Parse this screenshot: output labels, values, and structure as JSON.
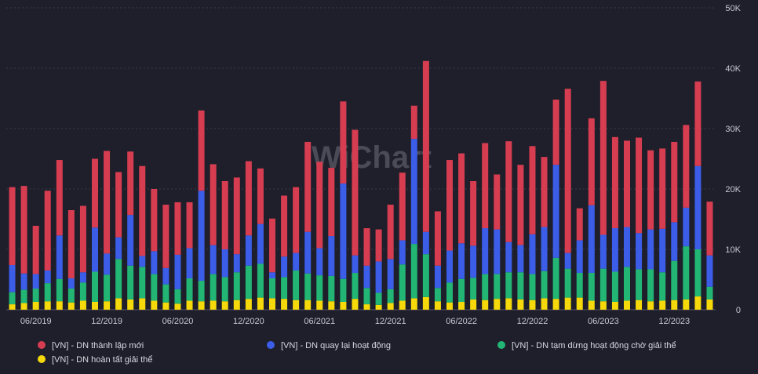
{
  "chart_data": {
    "type": "bar",
    "stacked": true,
    "watermark": "WiChart",
    "y_axis": {
      "position": "right",
      "min": 0,
      "max": 50000,
      "ticks": [
        0,
        10000,
        20000,
        30000,
        40000,
        50000
      ],
      "tick_labels": [
        "0",
        "10K",
        "20K",
        "30K",
        "40K",
        "50K"
      ]
    },
    "x_tick_labels": [
      {
        "label": "06/2019",
        "index": 2
      },
      {
        "label": "12/2019",
        "index": 8
      },
      {
        "label": "06/2020",
        "index": 14
      },
      {
        "label": "12/2020",
        "index": 20
      },
      {
        "label": "06/2021",
        "index": 26
      },
      {
        "label": "12/2021",
        "index": 32
      },
      {
        "label": "06/2022",
        "index": 38
      },
      {
        "label": "12/2022",
        "index": 44
      },
      {
        "label": "06/2023",
        "index": 50
      },
      {
        "label": "12/2023",
        "index": 56
      }
    ],
    "categories": [
      "04/2019",
      "05/2019",
      "06/2019",
      "07/2019",
      "08/2019",
      "09/2019",
      "10/2019",
      "11/2019",
      "12/2019",
      "01/2020",
      "02/2020",
      "03/2020",
      "04/2020",
      "05/2020",
      "06/2020",
      "07/2020",
      "08/2020",
      "09/2020",
      "10/2020",
      "11/2020",
      "12/2020",
      "01/2021",
      "02/2021",
      "03/2021",
      "04/2021",
      "05/2021",
      "06/2021",
      "07/2021",
      "08/2021",
      "09/2021",
      "10/2021",
      "11/2021",
      "12/2021",
      "01/2022",
      "02/2022",
      "03/2022",
      "04/2022",
      "05/2022",
      "06/2022",
      "07/2022",
      "08/2022",
      "09/2022",
      "10/2022",
      "11/2022",
      "12/2022",
      "01/2023",
      "02/2023",
      "03/2023",
      "04/2023",
      "05/2023",
      "06/2023",
      "07/2023",
      "08/2023",
      "09/2023",
      "10/2023",
      "11/2023",
      "12/2023",
      "01/2024",
      "02/2024",
      "03/2024"
    ],
    "series": [
      {
        "name": "[VN] - DN hoàn tất giải thể",
        "color": "#f5d90a",
        "values": [
          900,
          1100,
          1300,
          1400,
          1400,
          1200,
          1500,
          1300,
          1400,
          1900,
          1700,
          1900,
          1500,
          1200,
          1000,
          1500,
          1400,
          1500,
          1400,
          1600,
          1800,
          2000,
          1900,
          1800,
          1600,
          1600,
          1500,
          1400,
          1300,
          1800,
          900,
          800,
          1100,
          1500,
          1900,
          2100,
          1400,
          1200,
          1300,
          1700,
          1600,
          1800,
          1900,
          1700,
          1600,
          1900,
          1800,
          2000,
          2000,
          1500,
          1400,
          1300,
          1500,
          1600,
          1400,
          1500,
          1600,
          1700,
          2200,
          1700
        ]
      },
      {
        "name": "[VN] - DN tạm dừng hoạt động chờ giải thể",
        "color": "#22b573",
        "values": [
          2000,
          2200,
          2200,
          3000,
          3700,
          2300,
          3000,
          5000,
          4400,
          6500,
          5600,
          5200,
          4400,
          3000,
          2400,
          3700,
          3400,
          4400,
          4000,
          4600,
          5500,
          5600,
          3300,
          3600,
          4900,
          4400,
          4200,
          4200,
          3800,
          4300,
          2700,
          2000,
          2300,
          6000,
          9000,
          7100,
          2200,
          3300,
          3800,
          3600,
          4300,
          4100,
          4300,
          4500,
          4300,
          4500,
          6800,
          4800,
          4100,
          4600,
          5400,
          5000,
          5600,
          5100,
          5300,
          4700,
          6500,
          8800,
          7800,
          2100
        ]
      },
      {
        "name": "[VN] - DN quay lại hoạt động",
        "color": "#3b5de7",
        "values": [
          4500,
          2700,
          2400,
          2100,
          7200,
          1700,
          1700,
          7300,
          3500,
          3600,
          8400,
          1800,
          3800,
          2700,
          5700,
          5000,
          14900,
          4800,
          4600,
          3000,
          5000,
          6600,
          1000,
          3400,
          2900,
          6900,
          4500,
          6600,
          15800,
          2900,
          3700,
          5200,
          5000,
          4000,
          17400,
          3700,
          3700,
          5300,
          5900,
          5300,
          7600,
          7400,
          5000,
          4500,
          6600,
          7300,
          15400,
          2600,
          5400,
          11200,
          5600,
          7200,
          6600,
          6000,
          6600,
          7200,
          6400,
          6400,
          13800,
          5200
        ]
      },
      {
        "name": "[VN] - DN thành lập mới",
        "color": "#d63d50",
        "values": [
          12900,
          14500,
          8000,
          13200,
          12500,
          11300,
          11000,
          11400,
          17000,
          10800,
          10500,
          14900,
          10300,
          10500,
          8700,
          7600,
          13300,
          13400,
          11300,
          12700,
          12300,
          9200,
          8900,
          10100,
          10900,
          14900,
          14300,
          11300,
          13600,
          20800,
          6200,
          5300,
          9000,
          11200,
          5500,
          28300,
          9000,
          15000,
          14900,
          10700,
          14100,
          9100,
          16700,
          13300,
          14600,
          11600,
          10800,
          27200,
          5300,
          14400,
          25500,
          15100,
          14300,
          15800,
          13100,
          13300,
          13300,
          13700,
          14000,
          8900
        ]
      }
    ],
    "legend": {
      "placement": "bottom"
    }
  }
}
